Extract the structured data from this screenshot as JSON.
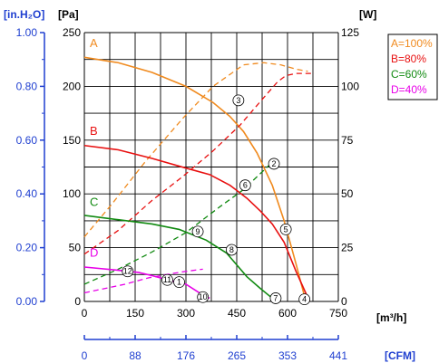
{
  "chart_data": {
    "type": "line",
    "units": {
      "inh2o": "[in.H₂O]",
      "pa": "[Pa]",
      "w": "[W]",
      "m3h": "[m³/h]",
      "cfm": "[CFM]"
    },
    "axes": {
      "x_m3h": {
        "min": 0,
        "max": 750,
        "ticks": [
          "0",
          "150",
          "300",
          "450",
          "600",
          "750"
        ]
      },
      "x_cfm": {
        "ticks": [
          "0",
          "88",
          "176",
          "265",
          "353",
          "441"
        ]
      },
      "y_pa": {
        "min": 0,
        "max": 250,
        "ticks": [
          "0",
          "50",
          "100",
          "150",
          "200",
          "250"
        ]
      },
      "y_inh2o": {
        "ticks": [
          "0.00",
          "0.20",
          "0.40",
          "0.60",
          "0.80",
          "1.00"
        ]
      },
      "y_w": {
        "min": 0,
        "max": 125,
        "ticks": [
          "0",
          "25",
          "50",
          "75",
          "100",
          "125"
        ]
      },
      "grid": true
    },
    "colors": {
      "A": "#f08a1e",
      "B": "#e81010",
      "C": "#118a11",
      "D": "#e800e8",
      "blue": "#1f3fd0"
    },
    "legend": [
      "A=100%",
      "B=80%",
      "C=60%",
      "D=40%"
    ],
    "series": [
      {
        "key": "A",
        "label": "A",
        "pressure": [
          [
            0,
            227
          ],
          [
            100,
            222
          ],
          [
            200,
            213
          ],
          [
            300,
            200
          ],
          [
            380,
            185
          ],
          [
            430,
            172
          ],
          [
            470,
            158
          ],
          [
            510,
            138
          ],
          [
            555,
            108
          ],
          [
            590,
            75
          ],
          [
            625,
            35
          ],
          [
            650,
            5
          ]
        ],
        "power": [
          [
            0,
            30
          ],
          [
            80,
            45
          ],
          [
            180,
            65
          ],
          [
            290,
            85
          ],
          [
            380,
            100
          ],
          [
            470,
            110
          ],
          [
            530,
            111
          ],
          [
            580,
            110
          ],
          [
            625,
            108
          ],
          [
            660,
            107
          ]
        ]
      },
      {
        "key": "B",
        "label": "B",
        "pressure": [
          [
            0,
            145
          ],
          [
            100,
            141
          ],
          [
            200,
            133
          ],
          [
            300,
            124
          ],
          [
            370,
            118
          ],
          [
            430,
            108
          ],
          [
            480,
            96
          ],
          [
            520,
            84
          ],
          [
            555,
            72
          ],
          [
            590,
            55
          ],
          [
            625,
            28
          ],
          [
            665,
            0
          ]
        ],
        "power": [
          [
            0,
            22
          ],
          [
            100,
            33
          ],
          [
            200,
            47
          ],
          [
            290,
            58
          ],
          [
            380,
            70
          ],
          [
            460,
            82
          ],
          [
            520,
            93
          ],
          [
            570,
            102
          ],
          [
            595,
            105
          ],
          [
            625,
            106
          ],
          [
            680,
            106
          ]
        ]
      },
      {
        "key": "C",
        "label": "C",
        "pressure": [
          [
            0,
            80
          ],
          [
            100,
            76
          ],
          [
            200,
            72
          ],
          [
            280,
            67
          ],
          [
            360,
            57
          ],
          [
            420,
            45
          ],
          [
            480,
            23
          ],
          [
            520,
            12
          ],
          [
            555,
            3
          ]
        ],
        "power": [
          [
            0,
            8
          ],
          [
            100,
            15
          ],
          [
            200,
            23
          ],
          [
            300,
            32
          ],
          [
            400,
            44
          ],
          [
            470,
            52
          ],
          [
            550,
            64
          ],
          [
            555,
            65
          ]
        ]
      },
      {
        "key": "D",
        "label": "D",
        "pressure": [
          [
            0,
            32
          ],
          [
            100,
            29
          ],
          [
            160,
            27
          ],
          [
            200,
            24
          ],
          [
            260,
            19
          ],
          [
            300,
            16
          ],
          [
            340,
            8
          ],
          [
            370,
            3
          ]
        ],
        "power": [
          [
            0,
            4
          ],
          [
            60,
            6
          ],
          [
            120,
            8
          ],
          [
            190,
            11
          ],
          [
            260,
            13
          ],
          [
            300,
            14
          ],
          [
            350,
            15
          ]
        ]
      }
    ],
    "markers": [
      {
        "id": "1",
        "label": "①",
        "x": 280,
        "y": 18
      },
      {
        "id": "2",
        "label": "②",
        "x": 560,
        "y": 128
      },
      {
        "id": "3",
        "label": "③",
        "x": 455,
        "y": 187
      },
      {
        "id": "4",
        "label": "④",
        "x": 650,
        "y": 2
      },
      {
        "id": "5",
        "label": "⑤",
        "x": 595,
        "y": 67
      },
      {
        "id": "6",
        "label": "⑥",
        "x": 475,
        "y": 108
      },
      {
        "id": "7",
        "label": "⑦",
        "x": 565,
        "y": 3
      },
      {
        "id": "8",
        "label": "⑧",
        "x": 435,
        "y": 48
      },
      {
        "id": "9",
        "label": "⑨",
        "x": 335,
        "y": 65
      },
      {
        "id": "10",
        "label": "⑩",
        "x": 350,
        "y": 4
      },
      {
        "id": "11",
        "label": "⑪",
        "x": 245,
        "y": 20
      },
      {
        "id": "12",
        "label": "⑫",
        "x": 128,
        "y": 28
      }
    ]
  }
}
